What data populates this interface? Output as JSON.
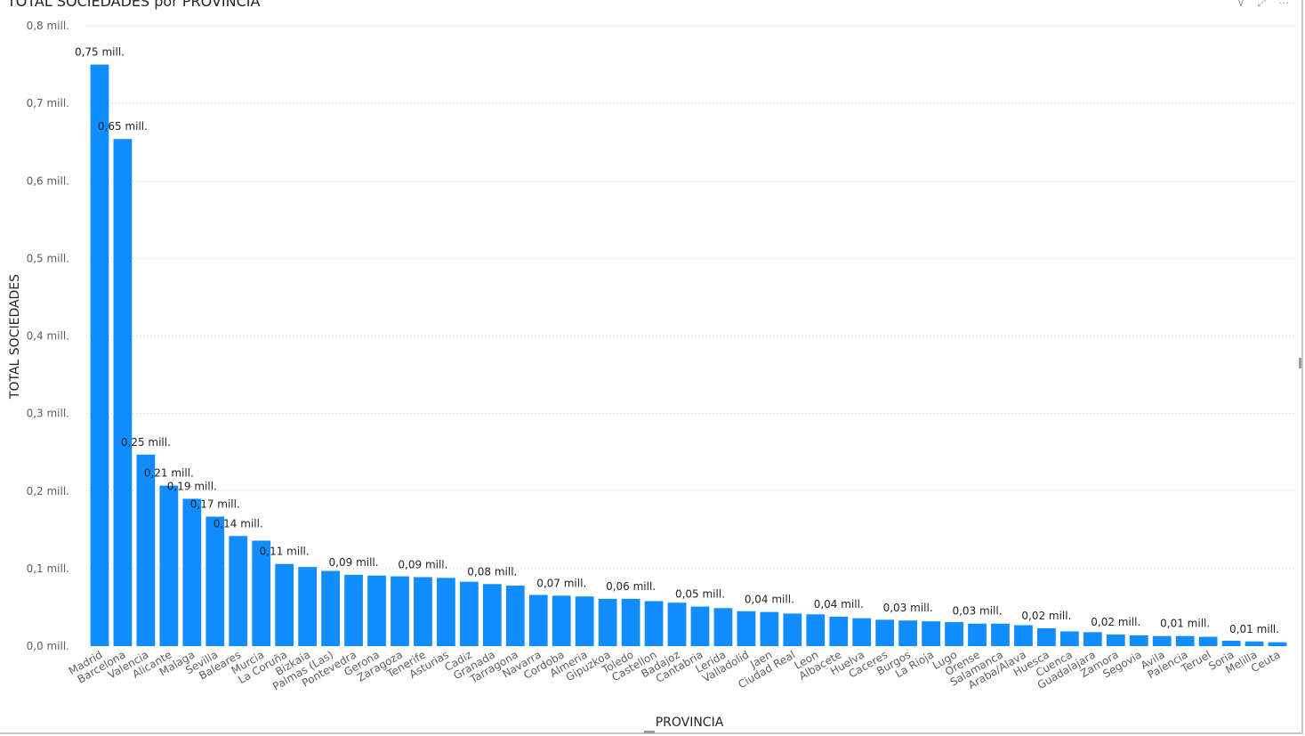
{
  "visual": {
    "title": "TOTAL SOCIEDADES por PROVINCIA",
    "icons": [
      "filter-icon",
      "focus-mode-icon",
      "more-options-icon"
    ]
  },
  "chart_data": {
    "type": "bar",
    "title": "TOTAL SOCIEDADES por PROVINCIA",
    "xlabel": "PROVINCIA",
    "ylabel": "TOTAL SOCIEDADES",
    "ylim": [
      0,
      0.8
    ],
    "yticks": [
      0,
      0.1,
      0.2,
      0.3,
      0.4,
      0.5,
      0.6,
      0.7,
      0.8
    ],
    "ytick_labels": [
      "0,0 mill.",
      "0,1 mill.",
      "0,2 mill.",
      "0,3 mill.",
      "0,4 mill.",
      "0,5 mill.",
      "0,6 mill.",
      "0,7 mill.",
      "0,8 mill."
    ],
    "grid": true,
    "bar_color": "#118dff",
    "categories": [
      "Madrid",
      "Barcelona",
      "Valencia",
      "Alicante",
      "Malaga",
      "Sevilla",
      "Baleares",
      "Murcia",
      "La Coruña",
      "Bizkaia",
      "Palmas (Las)",
      "Pontevedra",
      "Gerona",
      "Zaragoza",
      "Tenerife",
      "Asturias",
      "Cadiz",
      "Granada",
      "Tarragona",
      "Navarra",
      "Cordoba",
      "Almeria",
      "Gipuzkoa",
      "Toledo",
      "Castellon",
      "Badajoz",
      "Cantabria",
      "Lerida",
      "Valladolid",
      "Jaen",
      "Ciudad Real",
      "Leon",
      "Albacete",
      "Huelva",
      "Caceres",
      "Burgos",
      "La Rioja",
      "Lugo",
      "Orense",
      "Salamanca",
      "Araba/Alava",
      "Huesca",
      "Cuenca",
      "Guadalajara",
      "Zamora",
      "Segovia",
      "Avila",
      "Palencia",
      "Teruel",
      "Soria",
      "Melilla",
      "Ceuta"
    ],
    "values": [
      0.75,
      0.654,
      0.247,
      0.207,
      0.19,
      0.167,
      0.142,
      0.136,
      0.106,
      0.102,
      0.097,
      0.092,
      0.091,
      0.09,
      0.089,
      0.088,
      0.083,
      0.08,
      0.078,
      0.066,
      0.065,
      0.064,
      0.061,
      0.061,
      0.058,
      0.056,
      0.051,
      0.049,
      0.045,
      0.044,
      0.042,
      0.041,
      0.038,
      0.036,
      0.034,
      0.033,
      0.032,
      0.031,
      0.029,
      0.029,
      0.027,
      0.023,
      0.019,
      0.018,
      0.015,
      0.014,
      0.013,
      0.013,
      0.012,
      0.007,
      0.006,
      0.005
    ],
    "data_labels": [
      "0,75 mill.",
      "0,65 mill.",
      "0,25 mill.",
      "0,21 mill.",
      "0,19 mill.",
      "0,17 mill.",
      "0,14 mill.",
      "",
      "0,11 mill.",
      "",
      "",
      "0,09 mill.",
      "",
      "",
      "0,09 mill.",
      "",
      "",
      "0,08 mill.",
      "",
      "",
      "0,07 mill.",
      "",
      "",
      "0,06 mill.",
      "",
      "",
      "0,05 mill.",
      "",
      "",
      "0,04 mill.",
      "",
      "",
      "0,04 mill.",
      "",
      "",
      "0,03 mill.",
      "",
      "",
      "0,03 mill.",
      "",
      "",
      "0,02 mill.",
      "",
      "",
      "0,02 mill.",
      "",
      "",
      "0,01 mill.",
      "",
      "",
      "0,01 mill.",
      ""
    ]
  }
}
